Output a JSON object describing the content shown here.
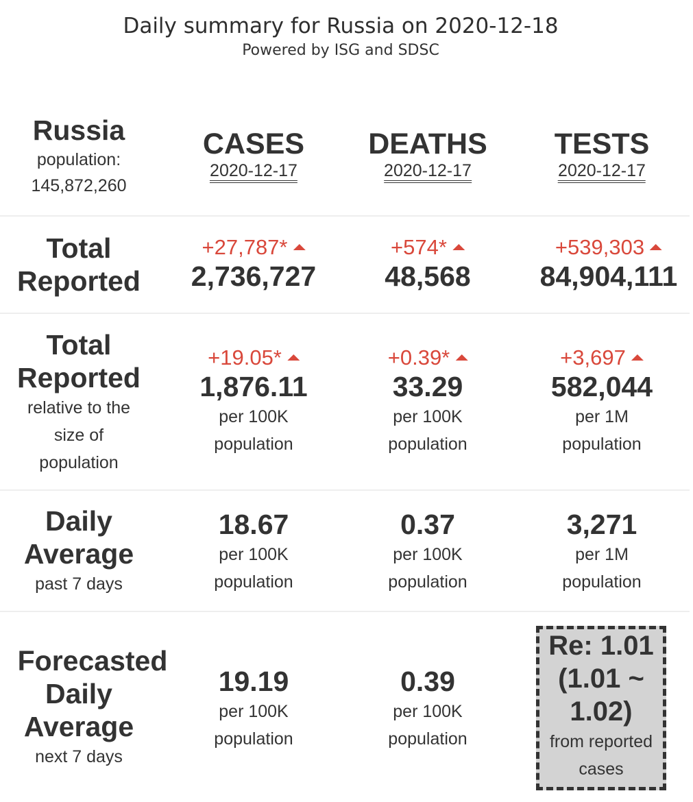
{
  "header": {
    "title": "Daily summary for Russia on 2020-12-18",
    "subtitle": "Powered by ISG and SDSC"
  },
  "country": {
    "name": "Russia",
    "population_label": "population:",
    "population": "145,872,260"
  },
  "columns": [
    {
      "label": "CASES",
      "date": "2020-12-17"
    },
    {
      "label": "DEATHS",
      "date": "2020-12-17"
    },
    {
      "label": "TESTS",
      "date": "2020-12-17"
    }
  ],
  "rows": {
    "total": {
      "label_line1": "Total",
      "label_line2": "Reported",
      "cells": [
        {
          "delta": "+27,787*",
          "value": "2,736,727"
        },
        {
          "delta": "+574*",
          "value": "48,568"
        },
        {
          "delta": "+539,303",
          "value": "84,904,111"
        }
      ]
    },
    "relative": {
      "label_line1": "Total",
      "label_line2": "Reported",
      "sub_line1": "relative to the",
      "sub_line2": "size of",
      "sub_line3": "population",
      "cells": [
        {
          "delta": "+19.05*",
          "value": "1,876.11",
          "unit1": "per 100K",
          "unit2": "population"
        },
        {
          "delta": "+0.39*",
          "value": "33.29",
          "unit1": "per 100K",
          "unit2": "population"
        },
        {
          "delta": "+3,697",
          "value": "582,044",
          "unit1": "per 1M",
          "unit2": "population"
        }
      ]
    },
    "daily": {
      "label_line1": "Daily",
      "label_line2": "Average",
      "sub_line1": "past 7 days",
      "cells": [
        {
          "value": "18.67",
          "unit1": "per 100K",
          "unit2": "population"
        },
        {
          "value": "0.37",
          "unit1": "per 100K",
          "unit2": "population"
        },
        {
          "value": "3,271",
          "unit1": "per 1M",
          "unit2": "population"
        }
      ]
    },
    "forecast": {
      "label_line1": "Forecasted",
      "label_line2": "Daily",
      "label_line3": "Average",
      "sub_line1": "next 7 days",
      "cells": [
        {
          "value": "19.19",
          "unit1": "per 100K",
          "unit2": "population"
        },
        {
          "value": "0.39",
          "unit1": "per 100K",
          "unit2": "population"
        }
      ],
      "re": {
        "line1": "Re: 1.01",
        "line2": "(1.01 ~",
        "line3": "1.02)",
        "sub1": "from reported",
        "sub2": "cases"
      }
    }
  },
  "colors": {
    "increase": "#d9483b",
    "text": "#333333",
    "re_box": "#d3d3d3"
  },
  "icons": {
    "increase": "triangle-up-icon"
  }
}
